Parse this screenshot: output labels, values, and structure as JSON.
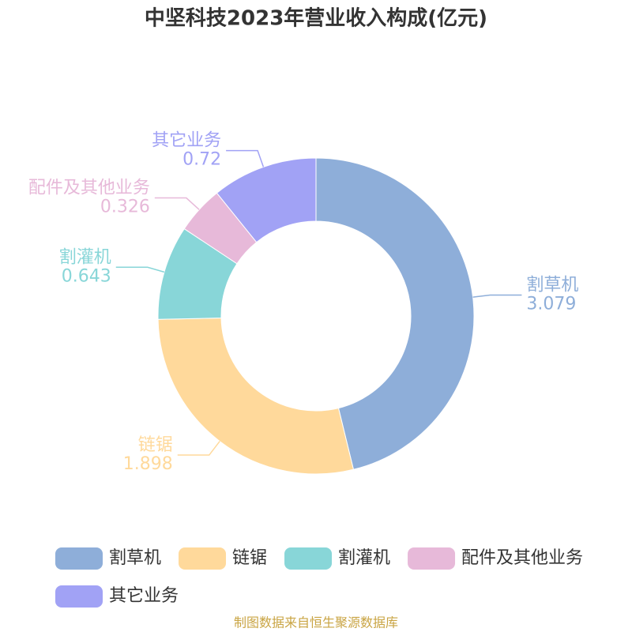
{
  "chart_data": {
    "type": "pie",
    "title": "中坚科技2023年营业收入构成(亿元)",
    "categories": [
      "割草机",
      "链锯",
      "割灌机",
      "配件及其他业务",
      "其它业务"
    ],
    "values": [
      3.079,
      1.898,
      0.643,
      0.326,
      0.72
    ],
    "colors": [
      "#8eaed9",
      "#ffd99b",
      "#88d6d8",
      "#e7b9d9",
      "#a1a2f5"
    ],
    "source": "制图数据来自恒生聚源数据库"
  }
}
